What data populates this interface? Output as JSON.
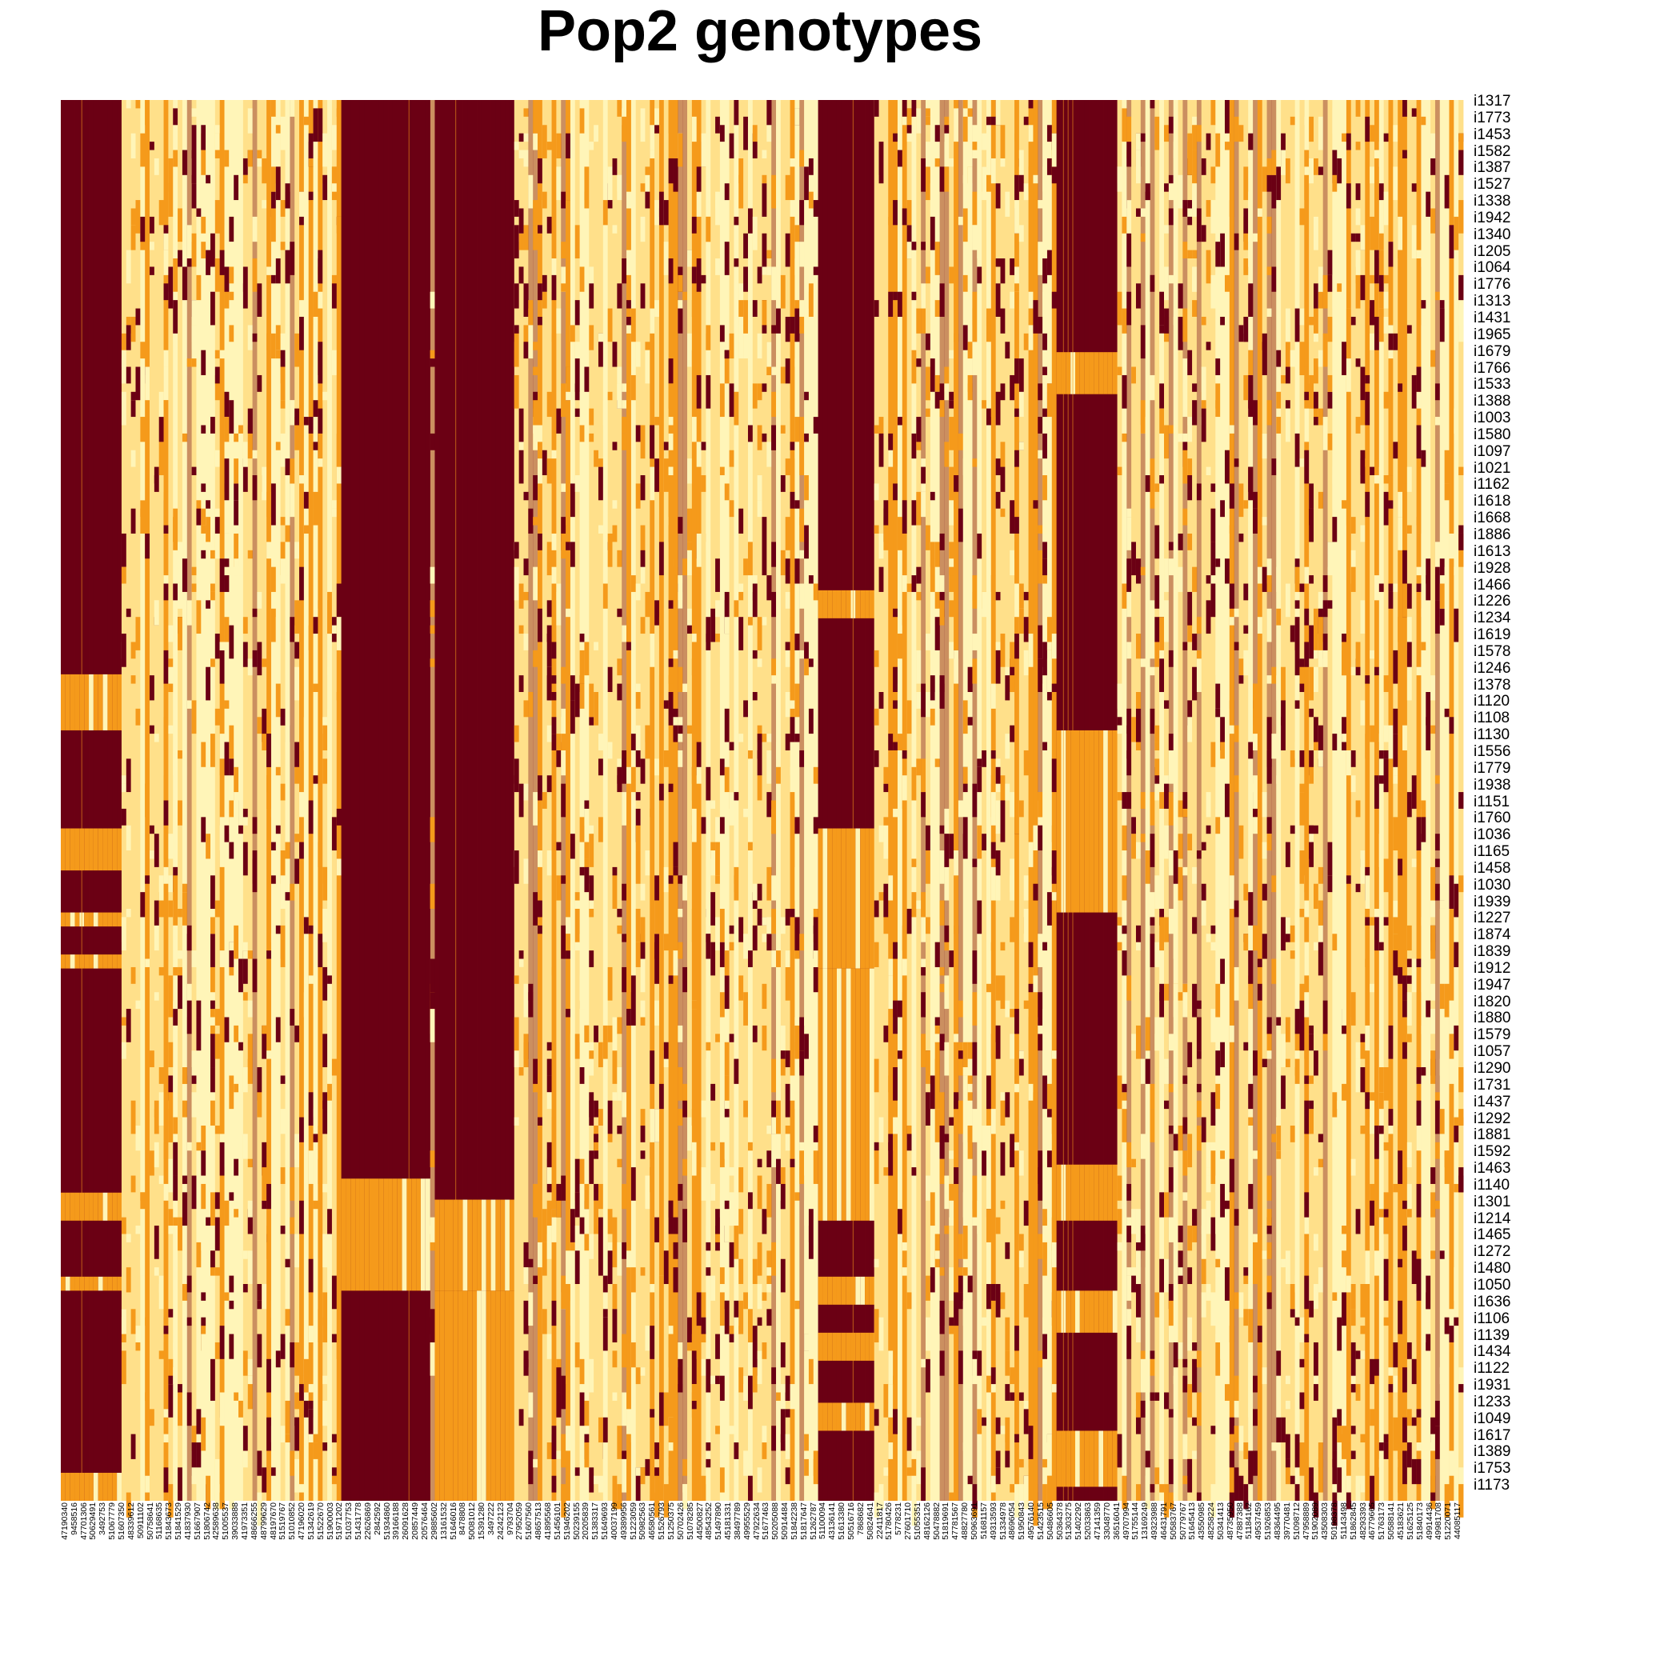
{
  "chart_data": {
    "type": "heatmap",
    "title": "Pop2 genotypes",
    "xlabel": "",
    "ylabel": "",
    "colors": {
      "low": "#FFF5B8",
      "light": "#FFE08A",
      "mid": "#F59A1B",
      "high": "#6B0014",
      "accent": "#A14C3E"
    },
    "row_labels": [
      "i1317",
      "i1773",
      "i1453",
      "i1582",
      "i1387",
      "i1527",
      "i1338",
      "i1942",
      "i1340",
      "i1205",
      "i1064",
      "i1776",
      "i1313",
      "i1431",
      "i1965",
      "i1679",
      "i1766",
      "i1533",
      "i1388",
      "i1003",
      "i1580",
      "i1097",
      "i1021",
      "i1162",
      "i1618",
      "i1668",
      "i1886",
      "i1613",
      "i1928",
      "i1466",
      "i1226",
      "i1234",
      "i1619",
      "i1578",
      "i1246",
      "i1378",
      "i1120",
      "i1108",
      "i1130",
      "i1556",
      "i1779",
      "i1938",
      "i1151",
      "i1760",
      "i1036",
      "i1165",
      "i1458",
      "i1030",
      "i1939",
      "i1227",
      "i1874",
      "i1839",
      "i1912",
      "i1947",
      "i1820",
      "i1880",
      "i1579",
      "i1057",
      "i1290",
      "i1731",
      "i1437",
      "i1292",
      "i1881",
      "i1592",
      "i1463",
      "i1140",
      "i1301",
      "i1214",
      "i1465",
      "i1272",
      "i1480",
      "i1050",
      "i1636",
      "i1106",
      "i1139",
      "i1434",
      "i1122",
      "i1931",
      "i1233",
      "i1049",
      "i1617",
      "i1389",
      "i1753",
      "i1173"
    ],
    "col_labels": [
      "47190340",
      "9458516",
      "47701306",
      "50629491",
      "3492753",
      "51067779",
      "51607350",
      "48339612",
      "50911102",
      "50758641",
      "51168635",
      "51843673",
      "51841529",
      "41837930",
      "51667907",
      "51806742",
      "42589638",
      "51005537",
      "39033888",
      "41973351",
      "48666255",
      "48799629",
      "48197670",
      "51519767",
      "51010852",
      "47196020",
      "51342619",
      "51522670",
      "51900003",
      "51971202",
      "51037753",
      "51431778",
      "22626869",
      "2842592",
      "51934860",
      "39166188",
      "26091628",
      "20857449",
      "20576464",
      "29885602",
      "13161532",
      "51646016",
      "8478808",
      "50081012",
      "15391280",
      "3497222",
      "24242123",
      "9793704",
      "27952059",
      "51607560",
      "48657513",
      "41895568",
      "51456101",
      "51946202",
      "50239155",
      "20205839",
      "51383317",
      "51649693",
      "40037199",
      "49389956",
      "51223059",
      "50982563",
      "46580561",
      "51526793",
      "51250375",
      "50702426",
      "51078285",
      "44500827",
      "48543252",
      "51497890",
      "45181331",
      "38497789",
      "49955529",
      "47922634",
      "51677463",
      "50205088",
      "50914484",
      "51842238",
      "51817647",
      "51262787",
      "51100094",
      "43136141",
      "51613380",
      "50516716",
      "7868682",
      "50824641",
      "22411817",
      "51780426",
      "5778231",
      "27601710",
      "51055351",
      "48162126",
      "50478882",
      "51819691",
      "47781567",
      "48827780",
      "50963691",
      "51681157",
      "49313593",
      "51334978",
      "48696054",
      "51950843",
      "49576140",
      "51423515",
      "50486605",
      "50364378",
      "51303275",
      "51402292",
      "52033863",
      "47141359",
      "33048770",
      "36516041",
      "49707994",
      "51755144",
      "13169249",
      "49323988",
      "46431791",
      "50583767",
      "50779767",
      "51645413",
      "43550985",
      "48258224",
      "50341413",
      "48735950",
      "47887388",
      "51184162",
      "49537459",
      "51926853",
      "48364495",
      "39770481",
      "51098712",
      "47958889",
      "51902089",
      "43508303",
      "50198378",
      "51143498",
      "51862845",
      "48293393",
      "46779665",
      "51763173",
      "50588141",
      "45183621",
      "51625125",
      "51840173",
      "49914436",
      "49981708",
      "51220071",
      "44085117"
    ]
  }
}
